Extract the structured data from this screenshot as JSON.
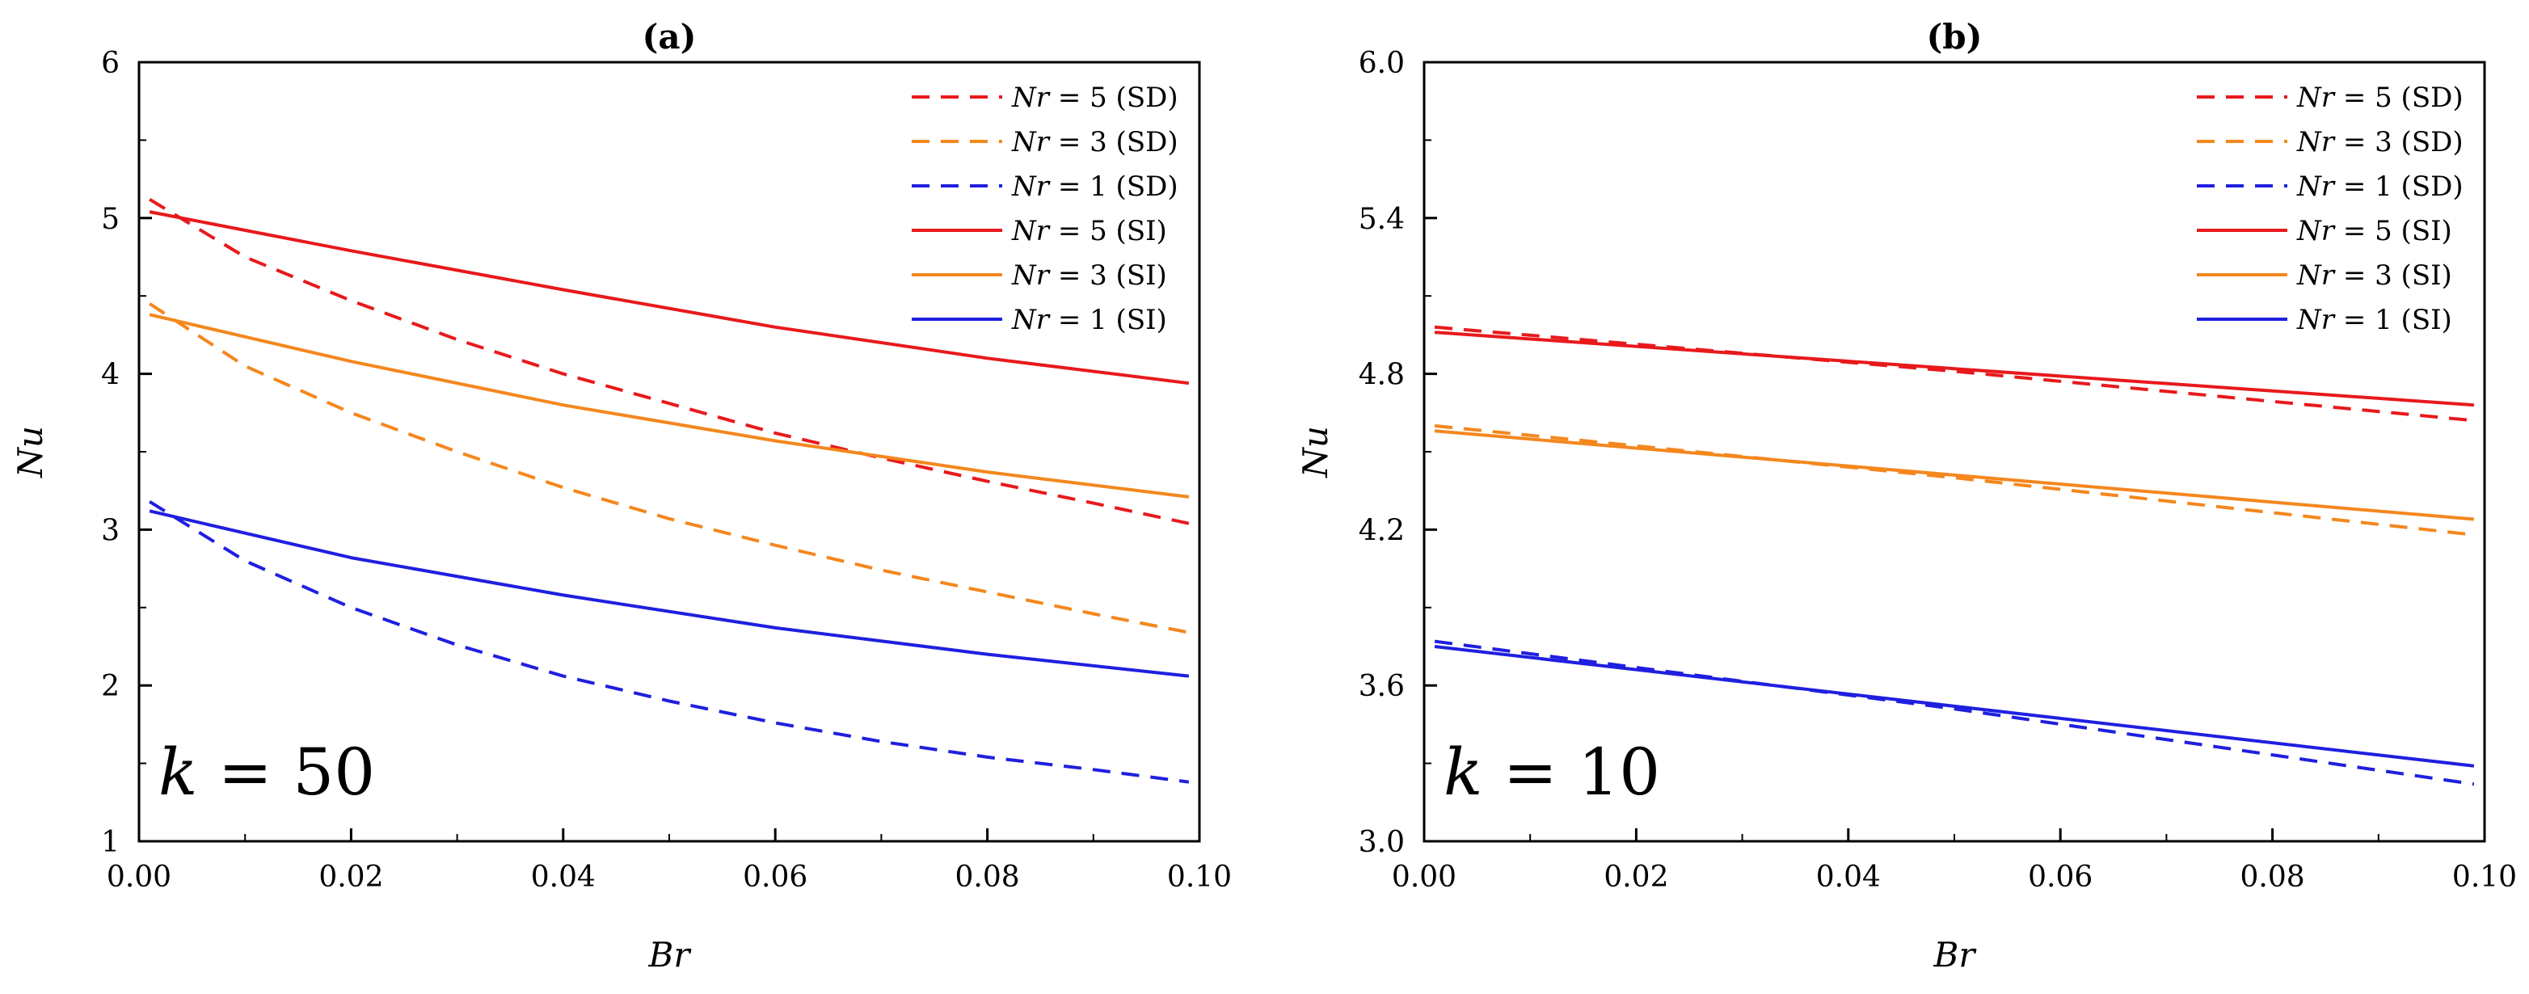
{
  "chart_data": [
    {
      "type": "line",
      "title": "(a)",
      "xlabel": "Br",
      "ylabel": "Nu",
      "xlim": [
        0.0,
        0.1
      ],
      "ylim": [
        1,
        6
      ],
      "x_ticks": [
        "0.00",
        "0.02",
        "0.04",
        "0.06",
        "0.08",
        "0.10"
      ],
      "y_ticks": [
        "1",
        "2",
        "3",
        "4",
        "5",
        "6"
      ],
      "legend_position": "top-right",
      "annotation": {
        "var": "k",
        "eq": " = 50"
      },
      "series": [
        {
          "name": "Nr = 5 (SD)",
          "legend_var": "Nr",
          "legend_rest": " = 5 (SD)",
          "color": "#e8191c",
          "dashed": true,
          "x": [
            0.001,
            0.01,
            0.02,
            0.03,
            0.04,
            0.05,
            0.06,
            0.07,
            0.08,
            0.09,
            0.099
          ],
          "y": [
            5.12,
            4.75,
            4.47,
            4.22,
            4.0,
            3.81,
            3.62,
            3.46,
            3.31,
            3.17,
            3.04
          ]
        },
        {
          "name": "Nr = 3 (SD)",
          "legend_var": "Nr",
          "legend_rest": " = 3 (SD)",
          "color": "#f4871e",
          "dashed": true,
          "x": [
            0.001,
            0.01,
            0.02,
            0.03,
            0.04,
            0.05,
            0.06,
            0.07,
            0.08,
            0.09,
            0.099
          ],
          "y": [
            4.45,
            4.05,
            3.75,
            3.5,
            3.27,
            3.07,
            2.9,
            2.74,
            2.6,
            2.46,
            2.34
          ]
        },
        {
          "name": "Nr = 1 (SD)",
          "legend_var": "Nr",
          "legend_rest": " = 1 (SD)",
          "color": "#1f1fe0",
          "dashed": true,
          "x": [
            0.001,
            0.01,
            0.02,
            0.03,
            0.04,
            0.05,
            0.06,
            0.07,
            0.08,
            0.09,
            0.099
          ],
          "y": [
            3.18,
            2.8,
            2.5,
            2.26,
            2.06,
            1.9,
            1.76,
            1.64,
            1.54,
            1.46,
            1.38
          ]
        },
        {
          "name": "Nr = 5 (SI)",
          "legend_var": "Nr",
          "legend_rest": " = 5 (SI)",
          "color": "#e8191c",
          "dashed": false,
          "x": [
            0.001,
            0.02,
            0.04,
            0.06,
            0.08,
            0.099
          ],
          "y": [
            5.04,
            4.79,
            4.54,
            4.3,
            4.1,
            3.94
          ]
        },
        {
          "name": "Nr = 3 (SI)",
          "legend_var": "Nr",
          "legend_rest": " = 3 (SI)",
          "color": "#f4871e",
          "dashed": false,
          "x": [
            0.001,
            0.02,
            0.04,
            0.06,
            0.08,
            0.099
          ],
          "y": [
            4.38,
            4.08,
            3.8,
            3.57,
            3.37,
            3.21
          ]
        },
        {
          "name": "Nr = 1 (SI)",
          "legend_var": "Nr",
          "legend_rest": " = 1 (SI)",
          "color": "#1f1fe0",
          "dashed": false,
          "x": [
            0.001,
            0.02,
            0.04,
            0.06,
            0.08,
            0.099
          ],
          "y": [
            3.12,
            2.82,
            2.58,
            2.37,
            2.2,
            2.06
          ]
        }
      ]
    },
    {
      "type": "line",
      "title": "(b)",
      "xlabel": "Br",
      "ylabel": "Nu",
      "xlim": [
        0.0,
        0.1
      ],
      "ylim": [
        3.0,
        6.0
      ],
      "x_ticks": [
        "0.00",
        "0.02",
        "0.04",
        "0.06",
        "0.08",
        "0.10"
      ],
      "y_ticks": [
        "3.0",
        "3.6",
        "4.2",
        "4.8",
        "5.4",
        "6.0"
      ],
      "legend_position": "top-right",
      "annotation": {
        "var": "k",
        "eq": " = 10"
      },
      "series": [
        {
          "name": "Nr = 5 (SD)",
          "legend_var": "Nr",
          "legend_rest": " = 5 (SD)",
          "color": "#e8191c",
          "dashed": true,
          "x": [
            0.001,
            0.05,
            0.099
          ],
          "y": [
            4.98,
            4.81,
            4.62
          ]
        },
        {
          "name": "Nr = 3 (SD)",
          "legend_var": "Nr",
          "legend_rest": " = 3 (SD)",
          "color": "#f4871e",
          "dashed": true,
          "x": [
            0.001,
            0.05,
            0.099
          ],
          "y": [
            4.6,
            4.4,
            4.18
          ]
        },
        {
          "name": "Nr = 1 (SD)",
          "legend_var": "Nr",
          "legend_rest": " = 1 (SD)",
          "color": "#1f1fe0",
          "dashed": true,
          "x": [
            0.001,
            0.05,
            0.099
          ],
          "y": [
            3.77,
            3.51,
            3.22
          ]
        },
        {
          "name": "Nr = 5 (SI)",
          "legend_var": "Nr",
          "legend_rest": " = 5 (SI)",
          "color": "#e8191c",
          "dashed": false,
          "x": [
            0.001,
            0.05,
            0.099
          ],
          "y": [
            4.96,
            4.82,
            4.68
          ]
        },
        {
          "name": "Nr = 3 (SI)",
          "legend_var": "Nr",
          "legend_rest": " = 3 (SI)",
          "color": "#f4871e",
          "dashed": false,
          "x": [
            0.001,
            0.05,
            0.099
          ],
          "y": [
            4.58,
            4.41,
            4.24
          ]
        },
        {
          "name": "Nr = 1 (SI)",
          "legend_var": "Nr",
          "legend_rest": " = 1 (SI)",
          "color": "#1f1fe0",
          "dashed": false,
          "x": [
            0.001,
            0.05,
            0.099
          ],
          "y": [
            3.75,
            3.52,
            3.29
          ]
        }
      ]
    }
  ]
}
